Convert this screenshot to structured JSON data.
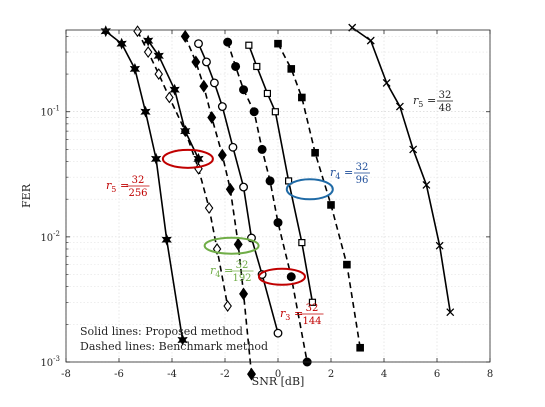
{
  "chart_data": {
    "type": "line",
    "title": "",
    "xlabel": "SNR [dB]",
    "ylabel": "FER",
    "xlim": [
      -8,
      8
    ],
    "ylim": [
      0.001,
      0.45
    ],
    "yscale": "log",
    "grid": true,
    "xticks": [
      -8,
      -6,
      -4,
      -2,
      0,
      2,
      4,
      6,
      8
    ],
    "xtick_labels": [
      "-8",
      "-6",
      "-4",
      "-2",
      "0",
      "2",
      "4",
      "6",
      "8"
    ],
    "yticks": [
      0.001,
      0.01,
      0.1
    ],
    "ytick_labels": [
      {
        "base": "10",
        "exp": "-3"
      },
      {
        "base": "10",
        "exp": "-2"
      },
      {
        "base": "10",
        "exp": "-1"
      }
    ],
    "notes": [
      "Solid lines: Proposed method",
      "Dashed lines: Benchmark method"
    ],
    "series": [
      {
        "style": "solid",
        "marker": "hexagram",
        "x": [
          -6.5,
          -5.9,
          -5.4,
          -5.0,
          -4.6,
          -4.2,
          -3.6
        ],
        "y": [
          0.44,
          0.35,
          0.22,
          0.1,
          0.042,
          0.0095,
          0.0015
        ]
      },
      {
        "style": "dashed",
        "marker": "diamond-open",
        "x": [
          -5.3,
          -4.9,
          -4.5,
          -4.1,
          -3.5,
          -3.0,
          -2.6,
          -2.3,
          -1.9
        ],
        "y": [
          0.44,
          0.3,
          0.2,
          0.13,
          0.07,
          0.035,
          0.017,
          0.008,
          0.0028
        ]
      },
      {
        "style": "solid",
        "marker": "hexagram",
        "x": [
          -4.9,
          -4.5,
          -3.9,
          -3.5,
          -3.0
        ],
        "y": [
          0.37,
          0.28,
          0.15,
          0.07,
          0.042
        ]
      },
      {
        "style": "dashed",
        "marker": "diamond-filled",
        "x": [
          -3.5,
          -3.1,
          -2.8,
          -2.5,
          -2.1,
          -1.8,
          -1.5,
          -1.3,
          -1.0
        ],
        "y": [
          0.4,
          0.25,
          0.16,
          0.09,
          0.045,
          0.024,
          0.0087,
          0.0035,
          0.0008
        ]
      },
      {
        "style": "solid",
        "marker": "circle-open",
        "x": [
          -3.0,
          -2.7,
          -2.4,
          -2.1,
          -1.7,
          -1.3,
          -1.0,
          -0.6,
          0.0
        ],
        "y": [
          0.35,
          0.25,
          0.17,
          0.11,
          0.052,
          0.025,
          0.0098,
          0.005,
          0.0017
        ]
      },
      {
        "style": "dashed",
        "marker": "circle-filled",
        "x": [
          -1.9,
          -1.6,
          -1.3,
          -0.9,
          -0.6,
          -0.3,
          0.0,
          0.5,
          1.1
        ],
        "y": [
          0.36,
          0.23,
          0.15,
          0.1,
          0.05,
          0.028,
          0.013,
          0.0048,
          0.001
        ]
      },
      {
        "style": "solid",
        "marker": "square-open",
        "x": [
          -1.1,
          -0.8,
          -0.4,
          -0.1,
          0.4,
          0.9,
          1.3
        ],
        "y": [
          0.34,
          0.23,
          0.14,
          0.1,
          0.028,
          0.009,
          0.003
        ]
      },
      {
        "style": "dashed",
        "marker": "square-filled",
        "x": [
          0.0,
          0.5,
          0.9,
          1.4,
          2.0,
          2.6,
          3.1
        ],
        "y": [
          0.35,
          0.22,
          0.13,
          0.047,
          0.018,
          0.006,
          0.0013
        ]
      },
      {
        "style": "solid",
        "marker": "x",
        "x": [
          2.8,
          3.5,
          4.1,
          4.6,
          5.1,
          5.6,
          6.1,
          6.5
        ],
        "y": [
          0.47,
          0.37,
          0.17,
          0.11,
          0.05,
          0.026,
          0.0085,
          0.0025
        ]
      }
    ],
    "annotations": [
      {
        "lhs": "r",
        "sub": "5",
        "num": "32",
        "den": "256",
        "color": "#c00000"
      },
      {
        "lhs": "r",
        "sub": "4",
        "num": "32",
        "den": "192",
        "color": "#70ad47"
      },
      {
        "lhs": "r",
        "sub": "3",
        "num": "32",
        "den": "144",
        "color": "#c00000"
      },
      {
        "lhs": "r",
        "sub": "4",
        "num": "32",
        "den": "96",
        "color": "#1f4e9a"
      },
      {
        "lhs": "r",
        "sub": "5",
        "num": "32",
        "den": "48",
        "color": "#262626"
      }
    ],
    "ellipse_colors": [
      "#c00000",
      "#70ad47",
      "#c00000",
      "#1f6aa6"
    ]
  }
}
